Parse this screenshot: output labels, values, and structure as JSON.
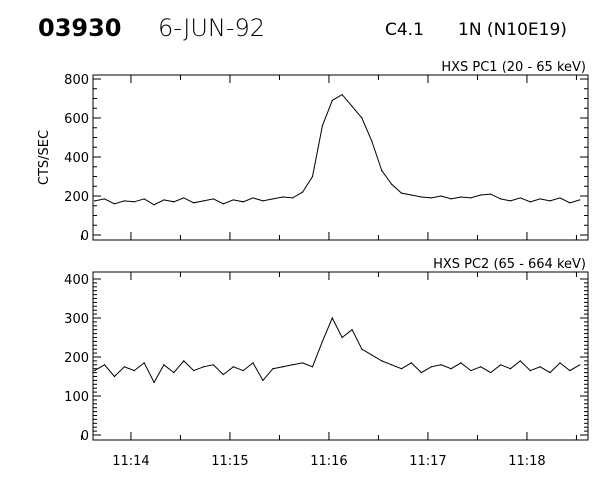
{
  "header": {
    "event_id": "03930",
    "date": "6-JUN-92",
    "goes_class": "C4.1",
    "location": "1N (N10E19)"
  },
  "chart_data": [
    {
      "type": "line",
      "title": "HXS PC1 (20 - 65 keV)",
      "ylabel": "CTS/SEC",
      "xlabel": "",
      "ylim": [
        0,
        800
      ],
      "yticks": [
        "0",
        "200",
        "400",
        "600",
        "800"
      ],
      "xlim": [
        "11:13:37",
        "11:18:37"
      ],
      "xticks": [
        "11:14",
        "11:15",
        "11:16",
        "11:17",
        "11:18"
      ],
      "x": [
        "11:13:38",
        "11:13:44",
        "11:13:50",
        "11:13:56",
        "11:14:02",
        "11:14:08",
        "11:14:14",
        "11:14:20",
        "11:14:26",
        "11:14:32",
        "11:14:38",
        "11:14:44",
        "11:14:50",
        "11:14:56",
        "11:15:02",
        "11:15:08",
        "11:15:14",
        "11:15:20",
        "11:15:26",
        "11:15:32",
        "11:15:38",
        "11:15:44",
        "11:15:50",
        "11:15:56",
        "11:16:02",
        "11:16:08",
        "11:16:14",
        "11:16:20",
        "11:16:26",
        "11:16:32",
        "11:16:38",
        "11:16:44",
        "11:16:50",
        "11:16:56",
        "11:17:02",
        "11:17:08",
        "11:17:14",
        "11:17:20",
        "11:17:26",
        "11:17:32",
        "11:17:38",
        "11:17:44",
        "11:17:50",
        "11:17:56",
        "11:18:02",
        "11:18:08",
        "11:18:14",
        "11:18:20",
        "11:18:26",
        "11:18:32"
      ],
      "values": [
        175,
        185,
        160,
        175,
        170,
        185,
        155,
        180,
        170,
        190,
        165,
        175,
        185,
        160,
        180,
        170,
        190,
        175,
        185,
        195,
        190,
        220,
        300,
        560,
        690,
        720,
        660,
        600,
        480,
        330,
        260,
        215,
        205,
        195,
        190,
        200,
        185,
        195,
        190,
        205,
        210,
        185,
        175,
        190,
        170,
        185,
        175,
        190,
        165,
        180
      ]
    },
    {
      "type": "line",
      "title": "HXS PC2 (65 - 664 keV)",
      "ylabel": "",
      "xlabel": "",
      "ylim": [
        0,
        400
      ],
      "yticks": [
        "0",
        "100",
        "200",
        "300",
        "400"
      ],
      "xlim": [
        "11:13:37",
        "11:18:37"
      ],
      "xticks": [
        "11:14",
        "11:15",
        "11:16",
        "11:17",
        "11:18"
      ],
      "x": [
        "11:13:38",
        "11:13:44",
        "11:13:50",
        "11:13:56",
        "11:14:02",
        "11:14:08",
        "11:14:14",
        "11:14:20",
        "11:14:26",
        "11:14:32",
        "11:14:38",
        "11:14:44",
        "11:14:50",
        "11:14:56",
        "11:15:02",
        "11:15:08",
        "11:15:14",
        "11:15:20",
        "11:15:26",
        "11:15:32",
        "11:15:38",
        "11:15:44",
        "11:15:50",
        "11:15:56",
        "11:16:02",
        "11:16:08",
        "11:16:14",
        "11:16:20",
        "11:16:26",
        "11:16:32",
        "11:16:38",
        "11:16:44",
        "11:16:50",
        "11:16:56",
        "11:17:02",
        "11:17:08",
        "11:17:14",
        "11:17:20",
        "11:17:26",
        "11:17:32",
        "11:17:38",
        "11:17:44",
        "11:17:50",
        "11:17:56",
        "11:18:02",
        "11:18:08",
        "11:18:14",
        "11:18:20",
        "11:18:26",
        "11:18:32"
      ],
      "values": [
        165,
        180,
        150,
        175,
        165,
        185,
        135,
        180,
        160,
        190,
        165,
        175,
        180,
        155,
        175,
        165,
        185,
        140,
        170,
        175,
        180,
        185,
        175,
        240,
        300,
        250,
        270,
        220,
        205,
        190,
        180,
        170,
        185,
        160,
        175,
        180,
        170,
        185,
        165,
        175,
        160,
        180,
        170,
        190,
        165,
        175,
        160,
        185,
        165,
        180
      ]
    }
  ]
}
